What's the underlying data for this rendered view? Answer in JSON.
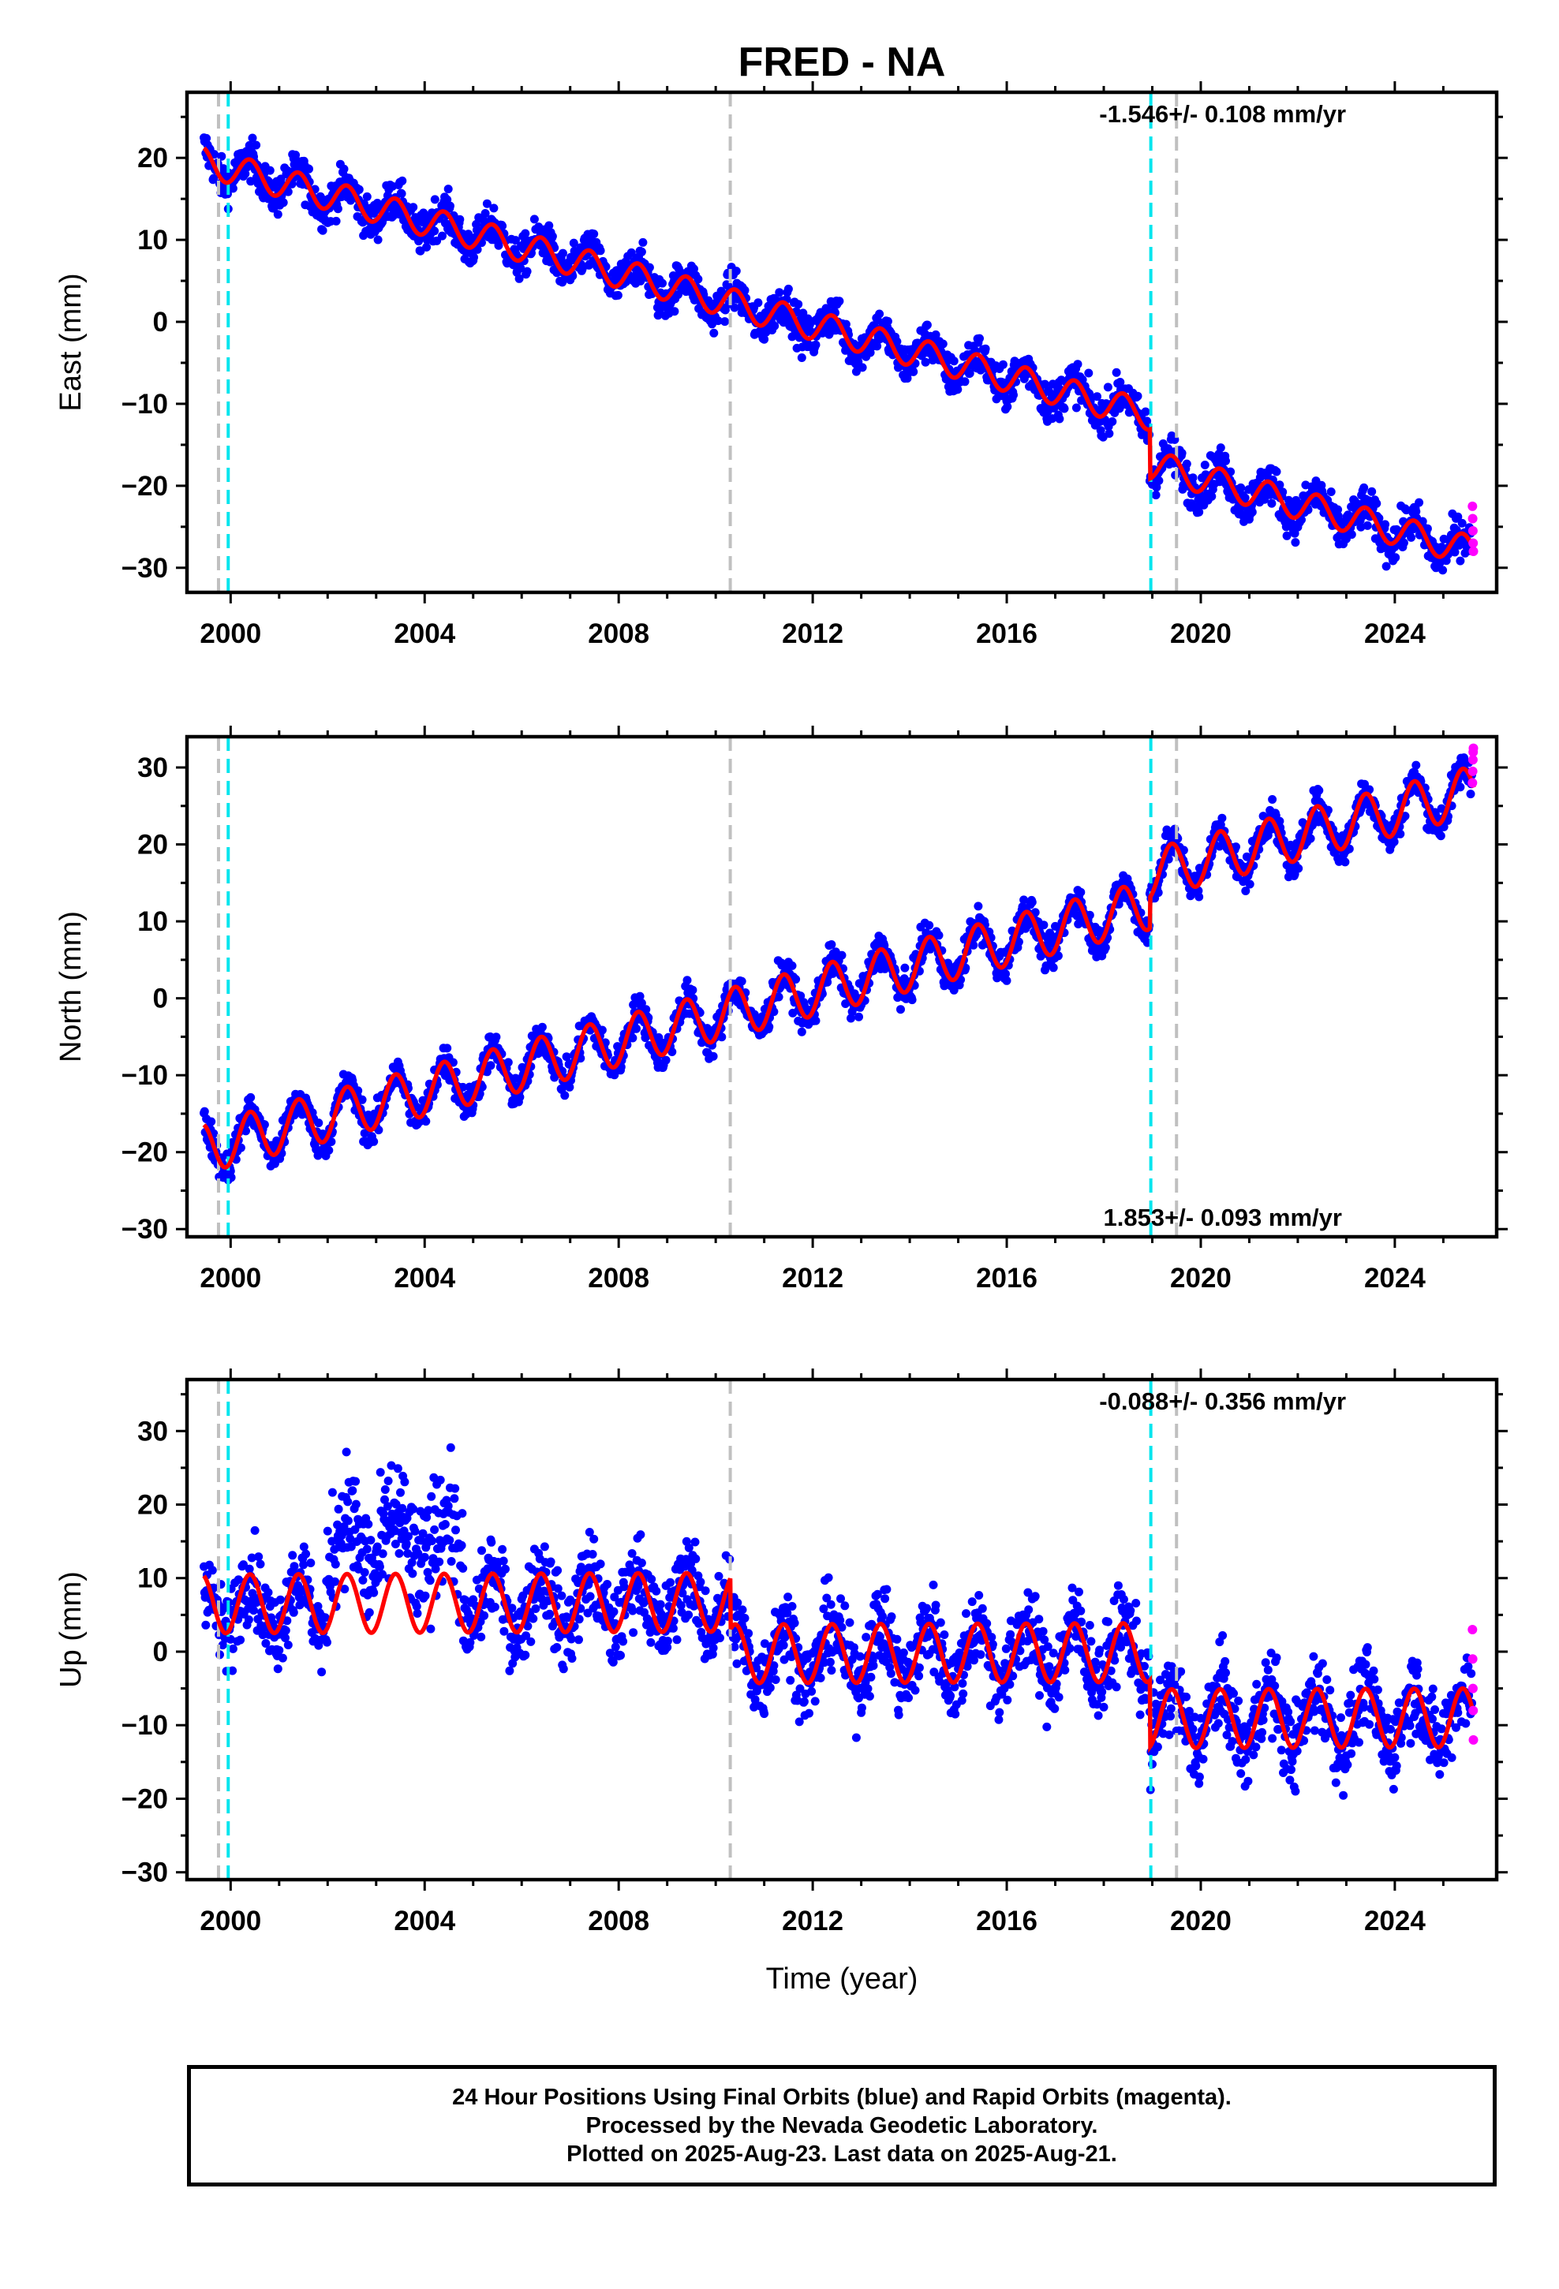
{
  "title": "FRED - NA",
  "colors": {
    "final_orbits": "#0000ff",
    "rapid_orbits": "#ff00ff",
    "model": "#ff0000",
    "equipment_change_line": "#00e5ee",
    "other_event_line": "#c0c0c0"
  },
  "footer": {
    "line1": "24 Hour Positions Using Final Orbits (blue) and Rapid Orbits (magenta).",
    "line2": "Processed by the Nevada Geodetic Laboratory.",
    "line3": "Plotted on 2025-Aug-23. Last data on 2025-Aug-21."
  },
  "chart_data": [
    {
      "type": "scatter",
      "component": "East",
      "ylabel": "East (mm)",
      "xlabel": "",
      "rate_label": "-1.546+/- 0.108 mm/yr",
      "rate_position": "top-right",
      "xlim": [
        1999.1,
        2026.1
      ],
      "ylim": [
        -33,
        28
      ],
      "xticks": [
        2000,
        2004,
        2008,
        2012,
        2016,
        2020,
        2024
      ],
      "yticks": [
        20,
        10,
        0,
        -10,
        -20,
        -30
      ],
      "start_value": 19.5,
      "end_value": -28,
      "rate_mm_per_yr": -1.546,
      "seasonal_amplitude": 1.8,
      "scatter_spread": 2.2,
      "offsets": [
        {
          "year": 2018.95,
          "step": -6
        }
      ],
      "rapid_orbit_values": [
        -22.5,
        -24,
        -25.5,
        -27,
        -28
      ],
      "event_lines": [
        {
          "year": 1999.75,
          "kind": "other"
        },
        {
          "year": 1999.95,
          "kind": "equipment"
        },
        {
          "year": 2010.3,
          "kind": "other"
        },
        {
          "year": 2018.97,
          "kind": "equipment"
        },
        {
          "year": 2019.5,
          "kind": "other"
        }
      ]
    },
    {
      "type": "scatter",
      "component": "North",
      "ylabel": "North (mm)",
      "xlabel": "",
      "rate_label": "1.853+/- 0.093 mm/yr",
      "rate_position": "bottom-right",
      "xlim": [
        1999.1,
        2026.1
      ],
      "ylim": [
        -31,
        34
      ],
      "xticks": [
        2000,
        2004,
        2008,
        2012,
        2016,
        2020,
        2024
      ],
      "yticks": [
        30,
        20,
        10,
        0,
        -10,
        -20,
        -30
      ],
      "start_value": -19.5,
      "end_value": 27,
      "rate_mm_per_yr": 1.853,
      "seasonal_amplitude": 3.2,
      "scatter_spread": 2.0,
      "offsets": [
        {
          "year": 2018.95,
          "step": 4
        }
      ],
      "rapid_orbit_values": [
        28,
        29.5,
        31,
        32,
        32.5
      ],
      "event_lines": [
        {
          "year": 1999.75,
          "kind": "other"
        },
        {
          "year": 1999.95,
          "kind": "equipment"
        },
        {
          "year": 2010.3,
          "kind": "other"
        },
        {
          "year": 2018.97,
          "kind": "equipment"
        },
        {
          "year": 2019.5,
          "kind": "other"
        }
      ]
    },
    {
      "type": "scatter",
      "component": "Up",
      "ylabel": "Up (mm)",
      "xlabel": "Time (year)",
      "rate_label": "-0.088+/- 0.356 mm/yr",
      "rate_position": "top-right",
      "xlim": [
        1999.1,
        2026.1
      ],
      "ylim": [
        -31,
        37
      ],
      "xticks": [
        2000,
        2004,
        2008,
        2012,
        2016,
        2020,
        2024
      ],
      "yticks": [
        30,
        20,
        10,
        0,
        -10,
        -20,
        -30
      ],
      "start_value": 6.5,
      "end_value": -9,
      "rate_mm_per_yr": -0.088,
      "seasonal_amplitude": 4.0,
      "scatter_spread": 5.0,
      "offsets": [
        {
          "year": 2010.3,
          "step": -7
        },
        {
          "year": 2018.95,
          "step": -9
        }
      ],
      "rapid_orbit_values": [
        3,
        -1,
        -5,
        -8,
        -12
      ],
      "event_lines": [
        {
          "year": 1999.75,
          "kind": "other"
        },
        {
          "year": 1999.95,
          "kind": "equipment"
        },
        {
          "year": 2010.3,
          "kind": "other"
        },
        {
          "year": 2018.97,
          "kind": "equipment"
        },
        {
          "year": 2019.5,
          "kind": "other"
        }
      ]
    }
  ]
}
